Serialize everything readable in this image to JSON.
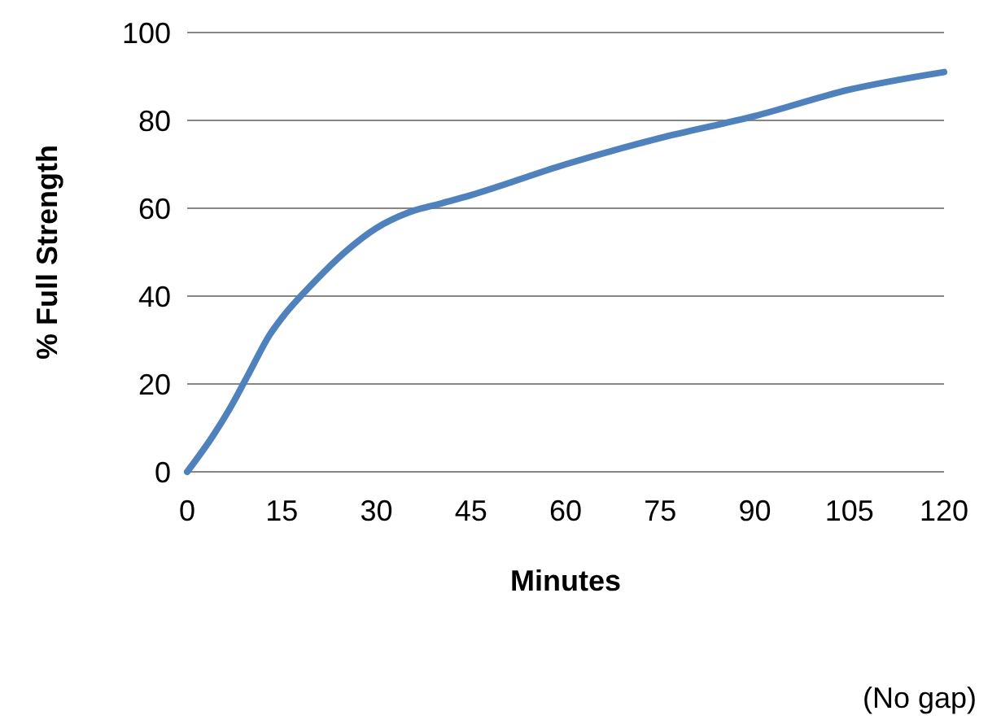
{
  "chart_data": {
    "type": "line",
    "xlabel": "Minutes",
    "ylabel": "% Full Strength",
    "x": [
      0,
      4,
      7,
      10,
      13,
      15,
      20,
      25,
      30,
      35,
      40,
      45,
      60,
      75,
      90,
      105,
      120
    ],
    "series": [
      {
        "color": "#4f81bd",
        "values": [
          0,
          8,
          15,
          23,
          31,
          35,
          43,
          50,
          55.5,
          59,
          61,
          63,
          70,
          76,
          81,
          87,
          91
        ]
      }
    ],
    "xlim": [
      0,
      120
    ],
    "xticks": [
      0,
      15,
      30,
      45,
      60,
      75,
      90,
      105,
      120
    ],
    "ylim": [
      0,
      100
    ],
    "yticks": [
      0,
      20,
      40,
      60,
      80,
      100
    ],
    "grid": "y",
    "marker": "none",
    "line_style": "solid",
    "annotations": [
      "(No gap)"
    ]
  }
}
